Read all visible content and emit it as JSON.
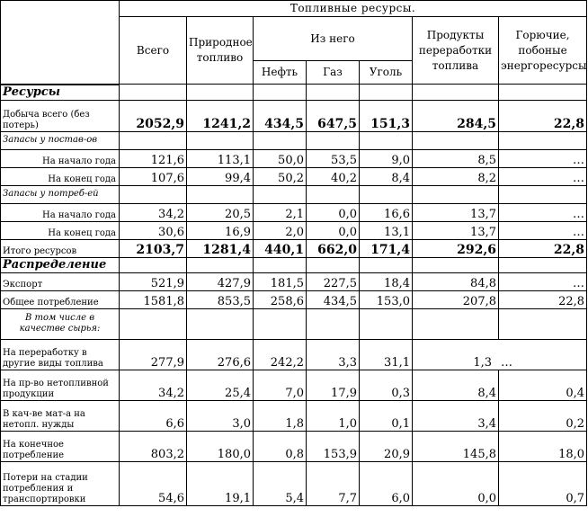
{
  "header": {
    "title": "Топливные ресурсы.",
    "col_total": "Всего",
    "col_natural": "Природное топливо",
    "col_of_it": "Из него",
    "col_oil": "Нефть",
    "col_gas": "Газ",
    "col_coal": "Уголь",
    "col_processed": "Продукты переработки топлива",
    "col_combustible": "Горючие, побоные энергоресурсы"
  },
  "section_resources": "Ресурсы",
  "section_distribution": "Распределение",
  "rows": [
    {
      "label": "Добыча всего (без потерь)",
      "values": [
        "2052,9",
        "1241,2",
        "434,5",
        "647,5",
        "151,3",
        "284,5",
        "22,8"
      ]
    },
    {
      "label": "Запасы у постав-ов"
    },
    {
      "label": "На начало года",
      "values": [
        "121,6",
        "113,1",
        "50,0",
        "53,5",
        "9,0",
        "8,5",
        "…"
      ]
    },
    {
      "label": "На конец года",
      "values": [
        "107,6",
        "99,4",
        "50,2",
        "40,2",
        "8,4",
        "8,2",
        "…"
      ]
    },
    {
      "label": "Запасы у потреб-ей"
    },
    {
      "label": "На начало года",
      "values": [
        "34,2",
        "20,5",
        "2,1",
        "0,0",
        "16,6",
        "13,7",
        "…"
      ]
    },
    {
      "label": "На конец года",
      "values": [
        "30,6",
        "16,9",
        "2,0",
        "0,0",
        "13,1",
        "13,7",
        "…"
      ]
    },
    {
      "label": "Итого ресурсов",
      "values": [
        "2103,7",
        "1281,4",
        "440,1",
        "662,0",
        "171,4",
        "292,6",
        "22,8"
      ]
    },
    {
      "label": "Экспорт",
      "values": [
        "521,9",
        "427,9",
        "181,5",
        "227,5",
        "18,4",
        "84,8",
        "…"
      ]
    },
    {
      "label": "Общее потребление",
      "values": [
        "1581,8",
        "853,5",
        "258,6",
        "434,5",
        "153,0",
        "207,8",
        "22,8"
      ]
    },
    {
      "label": "В том числе в качестве сырья:"
    },
    {
      "label": "На переработку в другие виды топлива",
      "values": [
        "277,9",
        "276,6",
        "242,2",
        "3,3",
        "31,1",
        "1,3",
        "…"
      ]
    },
    {
      "label": "На пр-во нетопливной продукции",
      "values": [
        "34,2",
        "25,4",
        "7,0",
        "17,9",
        "0,3",
        "8,4",
        "0,4"
      ]
    },
    {
      "label": "В кач-ве мат-а на нетопл. нужды",
      "values": [
        "6,6",
        "3,0",
        "1,8",
        "1,0",
        "0,1",
        "3,4",
        "0,2"
      ]
    },
    {
      "label": "На конечное потребление",
      "values": [
        "803,2",
        "180,0",
        "0,8",
        "153,9",
        "20,9",
        "145,8",
        "18,0"
      ]
    },
    {
      "label": "Потери на стадии потребления и транспортировки",
      "values": [
        "54,6",
        "19,1",
        "5,4",
        "7,7",
        "6,0",
        "0,0",
        "0,7"
      ]
    }
  ]
}
